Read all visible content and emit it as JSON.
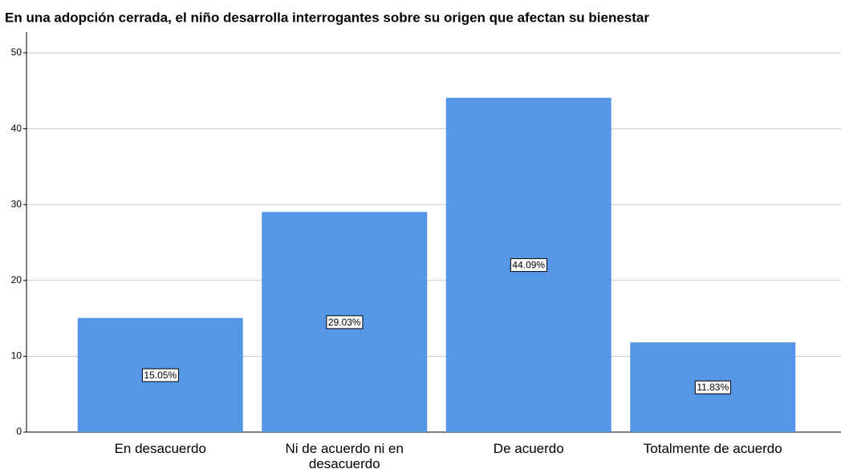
{
  "chart_data": {
    "type": "bar",
    "title": "En una adopción cerrada, el niño desarrolla interrogantes sobre su origen que afectan su bienestar",
    "categories": [
      "En desacuerdo",
      "Ni de acuerdo ni en desacuerdo",
      "De acuerdo",
      "Totalmente de acuerdo"
    ],
    "values": [
      15.05,
      29.03,
      44.09,
      11.83
    ],
    "value_labels": [
      "15.05%",
      "29.03%",
      "44.09%",
      "11.83%"
    ],
    "color": "#5596e6",
    "ylim": [
      0,
      50
    ],
    "yticks": [
      0,
      10,
      20,
      30,
      40,
      50
    ],
    "grid": true
  }
}
